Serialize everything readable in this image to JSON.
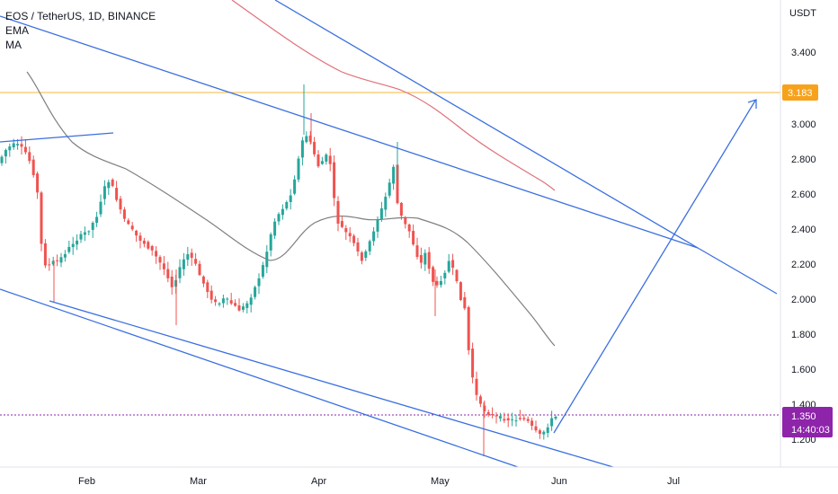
{
  "legend": {
    "symbol": "EOS / TetherUS, 1D, BINANCE",
    "ind1": "EMA",
    "ind2": "MA"
  },
  "price_axis": {
    "unit": "USDT",
    "ticks": [
      "3.400",
      "3.000",
      "2.800",
      "2.600",
      "2.400",
      "2.200",
      "2.000",
      "1.800",
      "1.600",
      "1.400",
      "1.200"
    ]
  },
  "time_axis": {
    "ticks": [
      "Feb",
      "Mar",
      "Apr",
      "May",
      "Jun",
      "Jul"
    ]
  },
  "badges": {
    "level": "3.183",
    "last_price": "1.350",
    "countdown": "14:40:03"
  },
  "colors": {
    "up": "#26a69a",
    "down": "#ef5350",
    "trendline": "#3a6fe0",
    "level_line": "#f5b942",
    "level_badge": "#f7a21b",
    "price_badge": "#8e24aa",
    "ema": "#7f7f7f",
    "ma": "#e0707a"
  },
  "chart_data": {
    "type": "candlestick",
    "y_range": [
      1.07,
      3.64
    ],
    "x_range": [
      "2021-01-10",
      "2021-07-25"
    ],
    "level": 3.183,
    "last_price": 1.35
  }
}
